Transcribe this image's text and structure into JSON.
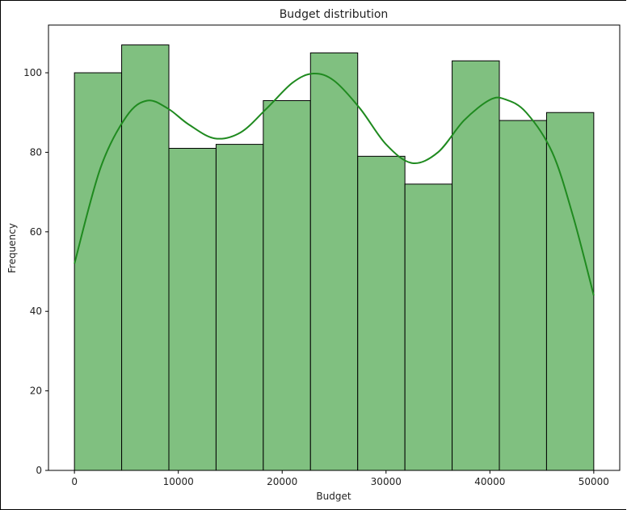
{
  "chart_data": {
    "type": "bar",
    "title": "Budget distribution",
    "xlabel": "Budget",
    "ylabel": "Frequency",
    "bin_edges": [
      0,
      4545.45,
      9090.91,
      13636.36,
      18181.82,
      22727.27,
      27272.73,
      31818.18,
      36363.64,
      40909.09,
      45454.55,
      50000
    ],
    "values": [
      100,
      107,
      81,
      82,
      93,
      105,
      79,
      72,
      103,
      88,
      90
    ],
    "kde": {
      "x": [
        0,
        2500,
        5000,
        7000,
        9000,
        11000,
        13500,
        16000,
        18500,
        21000,
        23000,
        25000,
        27500,
        30000,
        32500,
        35000,
        37500,
        40000,
        41500,
        43500,
        46000,
        48000,
        50000
      ],
      "y": [
        52,
        76,
        89,
        93,
        91,
        87,
        83.5,
        85,
        91,
        97.5,
        99.8,
        98,
        91,
        82,
        77.3,
        80,
        88,
        93.2,
        93.3,
        90,
        80,
        64,
        44
      ]
    },
    "xlim": [
      -2500,
      52500
    ],
    "ylim": [
      0,
      112
    ],
    "xticks": [
      0,
      10000,
      20000,
      30000,
      40000,
      50000
    ],
    "xtick_labels": [
      "0",
      "10000",
      "20000",
      "30000",
      "40000",
      "50000"
    ],
    "yticks": [
      0,
      20,
      40,
      60,
      80,
      100
    ],
    "ytick_labels": [
      "0",
      "20",
      "40",
      "60",
      "80",
      "100"
    ],
    "bar_color": "#80c080",
    "bar_edge_color": "#000000",
    "kde_color": "#1f8a1f",
    "legend": "none",
    "grid": false
  }
}
